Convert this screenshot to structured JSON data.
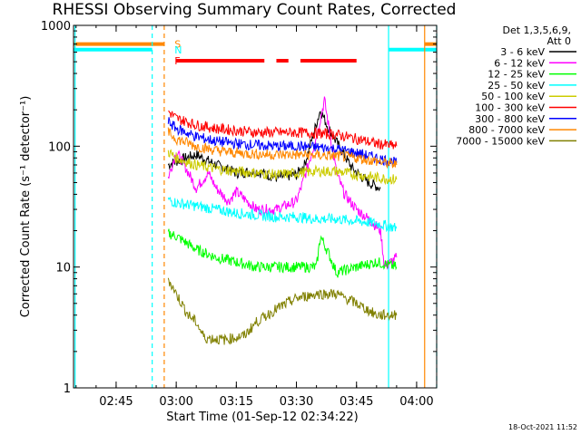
{
  "chart_data": {
    "type": "line",
    "title": "RHESSI Observing Summary Count Rates, Corrected",
    "xlabel": "Start Time (01-Sep-12 02:34:22)",
    "ylabel": "Corrected Count Rate (s⁻¹ detector⁻¹)",
    "y_scale": "log",
    "ylim": [
      1,
      1000
    ],
    "y_ticks": [
      {
        "value": 1,
        "label": "1"
      },
      {
        "value": 10,
        "label": "10"
      },
      {
        "value": 100,
        "label": "100"
      },
      {
        "value": 1000,
        "label": "1000"
      }
    ],
    "xlim": [
      "02:34:22",
      "04:05:00"
    ],
    "x_ticks": [
      {
        "value": "02:45",
        "label": "02:45"
      },
      {
        "value": "03:00",
        "label": "03:00"
      },
      {
        "value": "03:15",
        "label": "03:15"
      },
      {
        "value": "03:30",
        "label": "03:30"
      },
      {
        "value": "03:45",
        "label": "03:45"
      },
      {
        "value": "04:00",
        "label": "04:00"
      }
    ],
    "legend_header": [
      "Det 1,3,5,6,9,",
      "Att 0"
    ],
    "legend_position": "right",
    "series": [
      {
        "name": "3 - 6 keV",
        "color": "#000000",
        "x": [
          "02:58",
          "03:00",
          "03:05",
          "03:10",
          "03:15",
          "03:20",
          "03:25",
          "03:30",
          "03:32",
          "03:36",
          "03:38",
          "03:41",
          "03:44",
          "03:48",
          "03:51"
        ],
        "y": [
          70,
          75,
          85,
          70,
          60,
          62,
          55,
          58,
          70,
          200,
          140,
          95,
          65,
          50,
          45
        ]
      },
      {
        "name": "6 - 12 keV",
        "color": "#ff00ff",
        "x": [
          "02:58",
          "03:00",
          "03:02",
          "03:05",
          "03:08",
          "03:10",
          "03:13",
          "03:15",
          "03:20",
          "03:25",
          "03:30",
          "03:32",
          "03:35",
          "03:37",
          "03:38",
          "03:40",
          "03:42",
          "03:45",
          "03:48",
          "03:51",
          "03:52",
          "03:55"
        ],
        "y": [
          55,
          90,
          70,
          45,
          60,
          45,
          35,
          42,
          30,
          30,
          35,
          55,
          120,
          240,
          150,
          60,
          40,
          30,
          25,
          20,
          10,
          12
        ]
      },
      {
        "name": "12 - 25 keV",
        "color": "#00ff00",
        "x": [
          "02:58",
          "03:00",
          "03:05",
          "03:10",
          "03:15",
          "03:20",
          "03:25",
          "03:30",
          "03:35",
          "03:36",
          "03:38",
          "03:40",
          "03:45",
          "03:50",
          "03:55"
        ],
        "y": [
          19,
          18,
          14,
          12,
          11,
          10,
          10,
          10,
          10,
          18,
          13,
          9,
          10,
          11,
          10
        ]
      },
      {
        "name": "25 - 50 keV",
        "color": "#00ffff",
        "x": [
          "02:58",
          "03:00",
          "03:05",
          "03:10",
          "03:15",
          "03:20",
          "03:25",
          "03:30",
          "03:35",
          "03:40",
          "03:45",
          "03:50",
          "03:55"
        ],
        "y": [
          36,
          34,
          32,
          30,
          28,
          27,
          26,
          26,
          25,
          25,
          24,
          23,
          21
        ]
      },
      {
        "name": "50 - 100 keV",
        "color": "#cccc00",
        "x": [
          "02:58",
          "03:00",
          "03:05",
          "03:10",
          "03:15",
          "03:20",
          "03:25",
          "03:30",
          "03:35",
          "03:40",
          "03:45",
          "03:50",
          "03:55"
        ],
        "y": [
          90,
          80,
          70,
          65,
          62,
          60,
          58,
          60,
          62,
          62,
          58,
          55,
          53
        ]
      },
      {
        "name": "100 - 300 keV",
        "color": "#ff0000",
        "x": [
          "02:58",
          "03:00",
          "03:05",
          "03:10",
          "03:15",
          "03:20",
          "03:25",
          "03:30",
          "03:35",
          "03:40",
          "03:45",
          "03:50",
          "03:55"
        ],
        "y": [
          195,
          170,
          150,
          140,
          135,
          130,
          130,
          130,
          128,
          125,
          115,
          105,
          100
        ]
      },
      {
        "name": "300 - 800 keV",
        "color": "#0000ff",
        "x": [
          "02:58",
          "03:00",
          "03:05",
          "03:10",
          "03:15",
          "03:20",
          "03:25",
          "03:30",
          "03:35",
          "03:40",
          "03:45",
          "03:50",
          "03:55"
        ],
        "y": [
          160,
          140,
          120,
          110,
          105,
          102,
          100,
          100,
          98,
          95,
          88,
          80,
          73
        ]
      },
      {
        "name": "800 - 7000 keV",
        "color": "#ff8800",
        "x": [
          "02:58",
          "03:00",
          "03:05",
          "03:10",
          "03:15",
          "03:20",
          "03:25",
          "03:30",
          "03:35",
          "03:40",
          "03:45",
          "03:50",
          "03:55"
        ],
        "y": [
          130,
          115,
          100,
          92,
          88,
          86,
          85,
          85,
          84,
          83,
          80,
          75,
          70
        ]
      },
      {
        "name": "7000 - 15000 keV",
        "color": "#808000",
        "x": [
          "02:58",
          "03:00",
          "03:03",
          "03:05",
          "03:07",
          "03:12",
          "03:17",
          "03:20",
          "03:25",
          "03:30",
          "03:35",
          "03:40",
          "03:45",
          "03:50",
          "03:55"
        ],
        "y": [
          8,
          6,
          4,
          3.5,
          2.6,
          2.5,
          2.7,
          3.5,
          4.5,
          5.5,
          6,
          6,
          5,
          4,
          4
        ]
      }
    ],
    "status_bars": [
      {
        "label": "S",
        "color": "#ff8800",
        "y": 700,
        "segments": [
          [
            "02:34:22",
            "02:57"
          ],
          [
            "04:02",
            "04:05"
          ]
        ]
      },
      {
        "label": "N",
        "color": "#00ffff",
        "y": 630,
        "segments": [
          [
            "02:34:22",
            "02:54"
          ],
          [
            "03:53",
            "04:05"
          ]
        ]
      },
      {
        "label": "F",
        "color": "#ff0000",
        "y": 510,
        "segments": [
          [
            "03:00",
            "03:22"
          ],
          [
            "03:25",
            "03:28"
          ],
          [
            "03:31",
            "03:45"
          ]
        ]
      }
    ],
    "vertical_markers": [
      {
        "x": "02:34:45",
        "color": "#00ffff",
        "style": "solid"
      },
      {
        "x": "02:54",
        "color": "#00ffff",
        "style": "dashed"
      },
      {
        "x": "02:57",
        "color": "#ff8800",
        "style": "dashed"
      },
      {
        "x": "03:53",
        "color": "#00ffff",
        "style": "solid"
      },
      {
        "x": "04:02",
        "color": "#ff8800",
        "style": "solid"
      },
      {
        "x": "04:05",
        "color": "#00ffff",
        "style": "dashed"
      }
    ]
  },
  "timestamp": "18-Oct-2021 11:52"
}
